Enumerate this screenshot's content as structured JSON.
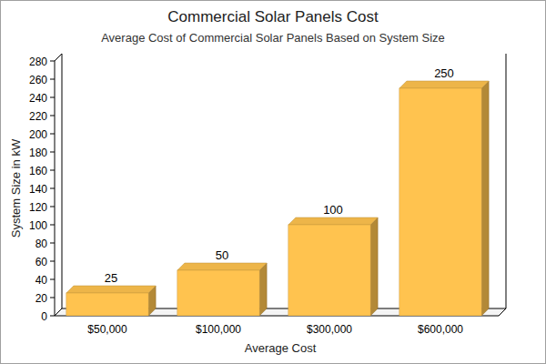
{
  "chart_data": {
    "type": "bar",
    "title": "Commercial Solar Panels Cost",
    "subtitle": "Average Cost of Commercial Solar Panels Based on System Size",
    "x_label": "Average Cost",
    "y_label": "System Size in kW",
    "categories": [
      "$50,000",
      "$100,000",
      "$300,000",
      "$600,000"
    ],
    "values": [
      25,
      50,
      100,
      250
    ],
    "color": "#ffc34f",
    "ylim": [
      0,
      280
    ],
    "yticks": [
      0,
      20,
      40,
      60,
      80,
      100,
      120,
      140,
      160,
      180,
      200,
      220,
      240,
      260,
      280
    ],
    "grid": false,
    "data_labels": true
  }
}
